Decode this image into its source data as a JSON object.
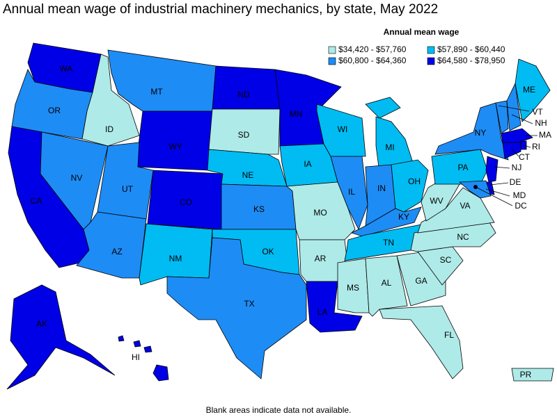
{
  "title": "Annual mean wage of industrial machinery mechanics, by state, May 2022",
  "legend": {
    "title": "Annual mean wage",
    "items": [
      {
        "label": "$34,420 - $57,760",
        "color": "#aeeae8"
      },
      {
        "label": "$57,890 - $60,440",
        "color": "#00bcf2"
      },
      {
        "label": "$60,800 - $64,360",
        "color": "#1e8cf5"
      },
      {
        "label": "$64,580 - $78,950",
        "color": "#0000e6"
      }
    ]
  },
  "states": [
    {
      "abbr": "WA",
      "color": "#0000e6"
    },
    {
      "abbr": "OR",
      "color": "#1e8cf5"
    },
    {
      "abbr": "CA",
      "color": "#0000e6"
    },
    {
      "abbr": "NV",
      "color": "#1e8cf5"
    },
    {
      "abbr": "ID",
      "color": "#aeeae8"
    },
    {
      "abbr": "MT",
      "color": "#1e8cf5"
    },
    {
      "abbr": "WY",
      "color": "#0000e6"
    },
    {
      "abbr": "UT",
      "color": "#1e8cf5"
    },
    {
      "abbr": "AZ",
      "color": "#1e8cf5"
    },
    {
      "abbr": "CO",
      "color": "#0000e6"
    },
    {
      "abbr": "NM",
      "color": "#00bcf2"
    },
    {
      "abbr": "ND",
      "color": "#0000e6"
    },
    {
      "abbr": "SD",
      "color": "#aeeae8"
    },
    {
      "abbr": "NE",
      "color": "#00bcf2"
    },
    {
      "abbr": "KS",
      "color": "#1e8cf5"
    },
    {
      "abbr": "OK",
      "color": "#00bcf2"
    },
    {
      "abbr": "TX",
      "color": "#1e8cf5"
    },
    {
      "abbr": "MN",
      "color": "#0000e6"
    },
    {
      "abbr": "IA",
      "color": "#00bcf2"
    },
    {
      "abbr": "MO",
      "color": "#aeeae8"
    },
    {
      "abbr": "AR",
      "color": "#aeeae8"
    },
    {
      "abbr": "LA",
      "color": "#0000e6"
    },
    {
      "abbr": "WI",
      "color": "#00bcf2"
    },
    {
      "abbr": "IL",
      "color": "#1e8cf5"
    },
    {
      "abbr": "MI",
      "color": "#00bcf2"
    },
    {
      "abbr": "IN",
      "color": "#1e8cf5"
    },
    {
      "abbr": "OH",
      "color": "#00bcf2"
    },
    {
      "abbr": "KY",
      "color": "#1e8cf5"
    },
    {
      "abbr": "TN",
      "color": "#00bcf2"
    },
    {
      "abbr": "MS",
      "color": "#aeeae8"
    },
    {
      "abbr": "AL",
      "color": "#aeeae8"
    },
    {
      "abbr": "GA",
      "color": "#aeeae8"
    },
    {
      "abbr": "FL",
      "color": "#aeeae8"
    },
    {
      "abbr": "SC",
      "color": "#aeeae8"
    },
    {
      "abbr": "NC",
      "color": "#aeeae8"
    },
    {
      "abbr": "VA",
      "color": "#aeeae8"
    },
    {
      "abbr": "WV",
      "color": "#aeeae8"
    },
    {
      "abbr": "PA",
      "color": "#00bcf2"
    },
    {
      "abbr": "NY",
      "color": "#1e8cf5"
    },
    {
      "abbr": "VT",
      "color": "#1e8cf5"
    },
    {
      "abbr": "NH",
      "color": "#1e8cf5"
    },
    {
      "abbr": "ME",
      "color": "#00bcf2"
    },
    {
      "abbr": "MA",
      "color": "#0000e6"
    },
    {
      "abbr": "RI",
      "color": "#0000e6"
    },
    {
      "abbr": "CT",
      "color": "#0000e6"
    },
    {
      "abbr": "NJ",
      "color": "#0000e6"
    },
    {
      "abbr": "DE",
      "color": "#0000e6"
    },
    {
      "abbr": "MD",
      "color": "#1e8cf5"
    },
    {
      "abbr": "DC",
      "color": "#000000"
    },
    {
      "abbr": "AK",
      "color": "#0000e6"
    },
    {
      "abbr": "HI",
      "color": "#0000e6"
    },
    {
      "abbr": "PR",
      "color": "#aeeae8"
    }
  ],
  "footnote": "Blank areas indicate data not available."
}
